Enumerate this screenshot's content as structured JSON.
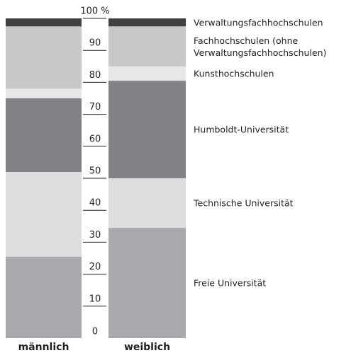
{
  "chart_data": {
    "type": "stacked_bar",
    "categories": [
      "männlich",
      "weiblich"
    ],
    "series": [
      {
        "name": "Freie Universität",
        "color": "#a7a9ac",
        "values": [
          25.5,
          34.5
        ]
      },
      {
        "name": "Technische Universität",
        "color": "#dcdddf",
        "values": [
          26.5,
          15.5
        ]
      },
      {
        "name": "Humboldt-Universität",
        "color": "#808285",
        "values": [
          23,
          30.5
        ]
      },
      {
        "name": "Kunsthochschulen",
        "color": "#e6e7e8",
        "values": [
          3,
          4.5
        ]
      },
      {
        "name": "Fachhochschulen (ohne Verwaltungsfachhochschulen)",
        "color": "#c7c8ca",
        "values": [
          19.5,
          12.5
        ]
      },
      {
        "name": "Verwaltungsfachhochschulen",
        "color": "#414042",
        "values": [
          2.5,
          2.5
        ]
      }
    ],
    "ylim": [
      0,
      100
    ],
    "yticks": [
      0,
      10,
      20,
      30,
      40,
      50,
      60,
      70,
      80,
      90,
      {
        "value": 100,
        "label": "100 %"
      }
    ]
  }
}
